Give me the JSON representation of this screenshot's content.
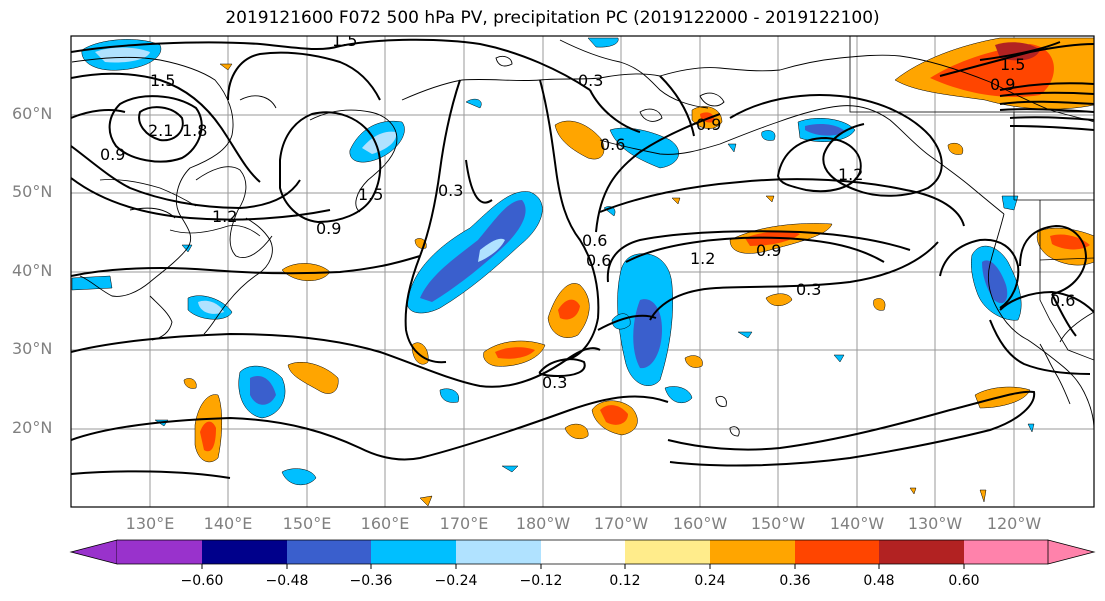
{
  "title": "2019121600 F072 500 hPa PV, precipitation PC (2019122000 - 2019122100)",
  "lat_labels": [
    "60°N",
    "50°N",
    "40°N",
    "30°N",
    "20°N"
  ],
  "lon_labels": [
    "130°E",
    "140°E",
    "150°E",
    "160°E",
    "170°E",
    "180°W",
    "170°W",
    "160°W",
    "150°W",
    "140°W",
    "130°W",
    "120°W"
  ],
  "contour_labels": [
    "1.5",
    "1.5",
    "2.1",
    "1.8",
    "0.9",
    "0.3",
    "1.2",
    "1.5",
    "0.9",
    "0.3",
    "0.6",
    "0.6",
    "0.6",
    "1.2",
    "0.9",
    "1.2",
    "0.3",
    "0.3",
    "0.6",
    "1.5",
    "0.9",
    "0.9"
  ],
  "colorbar": {
    "ticks": [
      "−0.60",
      "−0.48",
      "−0.36",
      "−0.24",
      "−0.12",
      "0.12",
      "0.24",
      "0.36",
      "0.48",
      "0.60"
    ],
    "colors": [
      "#9932cc",
      "#00008b",
      "#3a5fcd",
      "#00bfff",
      "#b0e2ff",
      "#ffffff",
      "#ffec8b",
      "#ffa500",
      "#ff4500",
      "#b22222",
      "#ff82ab"
    ]
  }
}
